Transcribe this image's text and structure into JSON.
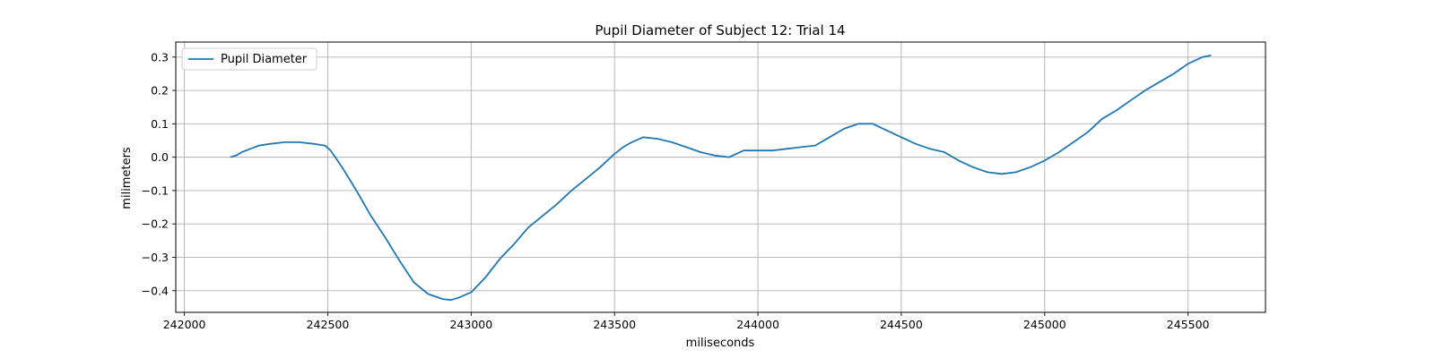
{
  "chart_data": {
    "type": "line",
    "title": "Pupil Diameter of Subject 12: Trial 14",
    "xlabel": "miliseconds",
    "ylabel": "milimeters",
    "xlim": [
      241970,
      245770
    ],
    "ylim": [
      -0.465,
      0.345
    ],
    "xticks": [
      242000,
      242500,
      243000,
      243500,
      244000,
      244500,
      245000,
      245500
    ],
    "yticks": [
      -0.4,
      -0.3,
      -0.2,
      -0.1,
      0.0,
      0.1,
      0.2,
      0.3
    ],
    "xtick_labels": [
      "242000",
      "242500",
      "243000",
      "243500",
      "244000",
      "244500",
      "245000",
      "245500"
    ],
    "ytick_labels": [
      "−0.4",
      "−0.3",
      "−0.2",
      "−0.1",
      "0.0",
      "0.1",
      "0.2",
      "0.3"
    ],
    "grid": true,
    "legend": "upper-left",
    "series": [
      {
        "name": "Pupil Diameter",
        "color": "#1f77b4",
        "x": [
          242160,
          242180,
          242200,
          242230,
          242260,
          242300,
          242350,
          242400,
          242450,
          242490,
          242510,
          242550,
          242600,
          242650,
          242700,
          242750,
          242800,
          242850,
          242900,
          242930,
          242960,
          243000,
          243050,
          243100,
          243150,
          243200,
          243250,
          243300,
          243350,
          243400,
          243450,
          243500,
          243530,
          243560,
          243600,
          243650,
          243700,
          243750,
          243800,
          243850,
          243900,
          243950,
          244000,
          244050,
          244100,
          244150,
          244200,
          244250,
          244300,
          244350,
          244400,
          244450,
          244500,
          244550,
          244600,
          244650,
          244700,
          244750,
          244800,
          244850,
          244900,
          244950,
          245000,
          245050,
          245100,
          245150,
          245200,
          245250,
          245300,
          245350,
          245400,
          245450,
          245500,
          245550,
          245580
        ],
        "y": [
          0.0,
          0.005,
          0.015,
          0.025,
          0.035,
          0.04,
          0.045,
          0.045,
          0.04,
          0.035,
          0.02,
          -0.03,
          -0.1,
          -0.175,
          -0.24,
          -0.31,
          -0.375,
          -0.41,
          -0.425,
          -0.428,
          -0.42,
          -0.405,
          -0.36,
          -0.305,
          -0.26,
          -0.21,
          -0.175,
          -0.14,
          -0.1,
          -0.065,
          -0.03,
          0.01,
          0.03,
          0.045,
          0.06,
          0.055,
          0.045,
          0.03,
          0.015,
          0.005,
          0.0,
          0.02,
          0.02,
          0.02,
          0.025,
          0.03,
          0.035,
          0.06,
          0.085,
          0.1,
          0.1,
          0.08,
          0.06,
          0.04,
          0.025,
          0.015,
          -0.01,
          -0.03,
          -0.045,
          -0.05,
          -0.045,
          -0.03,
          -0.01,
          0.015,
          0.045,
          0.075,
          0.115,
          0.14,
          0.17,
          0.2,
          0.225,
          0.25,
          0.28,
          0.3,
          0.305
        ]
      }
    ]
  }
}
